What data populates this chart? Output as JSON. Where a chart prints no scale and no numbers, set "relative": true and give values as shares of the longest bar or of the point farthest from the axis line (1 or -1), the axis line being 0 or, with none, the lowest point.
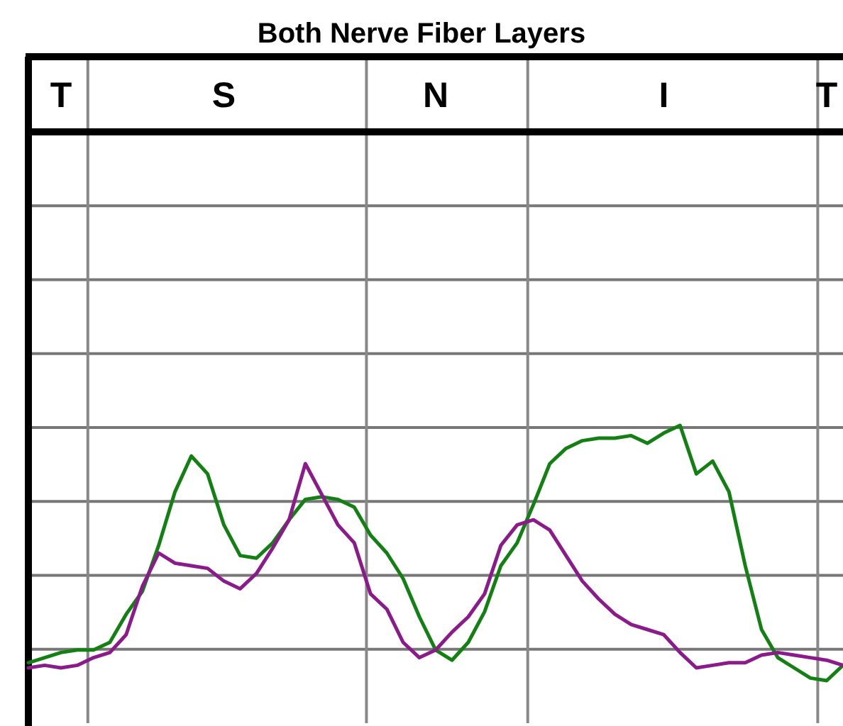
{
  "chart_data": {
    "type": "line",
    "title": "Both Nerve Fiber Layers",
    "relative": true,
    "grid": true,
    "categories": [
      null,
      null,
      "T",
      null,
      null,
      null,
      null,
      null,
      null,
      null,
      null,
      null,
      "S",
      null,
      null,
      null,
      null,
      null,
      null,
      null,
      null,
      null,
      null,
      null,
      null,
      "N",
      null,
      null,
      null,
      null,
      null,
      null,
      null,
      null,
      null,
      null,
      null,
      null,
      null,
      "I",
      null,
      null,
      null,
      null,
      null,
      null,
      null,
      null,
      null,
      "T",
      null
    ],
    "series": [
      {
        "color": "#138013",
        "values": [
          0.07,
          0.09,
          0.11,
          0.12,
          0.12,
          0.15,
          0.26,
          0.35,
          0.53,
          0.74,
          0.88,
          0.81,
          0.61,
          0.49,
          0.48,
          0.54,
          0.63,
          0.71,
          0.72,
          0.71,
          0.68,
          0.57,
          0.5,
          0.4,
          0.25,
          0.12,
          0.08,
          0.15,
          0.27,
          0.45,
          0.54,
          0.69,
          0.85,
          0.91,
          0.94,
          0.95,
          0.95,
          0.96,
          0.93,
          0.97,
          1,
          0.81,
          0.86,
          0.74,
          0.45,
          0.2,
          0.09,
          0.05,
          0.01,
          0,
          0.06
        ]
      },
      {
        "color": "#8b1a8b",
        "values": [
          0.05,
          0.06,
          0.05,
          0.06,
          0.09,
          0.11,
          0.18,
          0.37,
          0.5,
          0.46,
          0.45,
          0.44,
          0.39,
          0.36,
          0.42,
          0.52,
          0.63,
          0.85,
          0.73,
          0.61,
          0.54,
          0.34,
          0.28,
          0.15,
          0.09,
          0.12,
          0.19,
          0.25,
          0.34,
          0.53,
          0.61,
          0.63,
          0.59,
          0.49,
          0.39,
          0.32,
          0.26,
          0.22,
          0.2,
          0.18,
          0.11,
          0.05,
          0.06,
          0.07,
          0.07,
          0.1,
          0.11,
          0.1,
          0.09,
          0.08,
          0.06
        ]
      }
    ]
  }
}
